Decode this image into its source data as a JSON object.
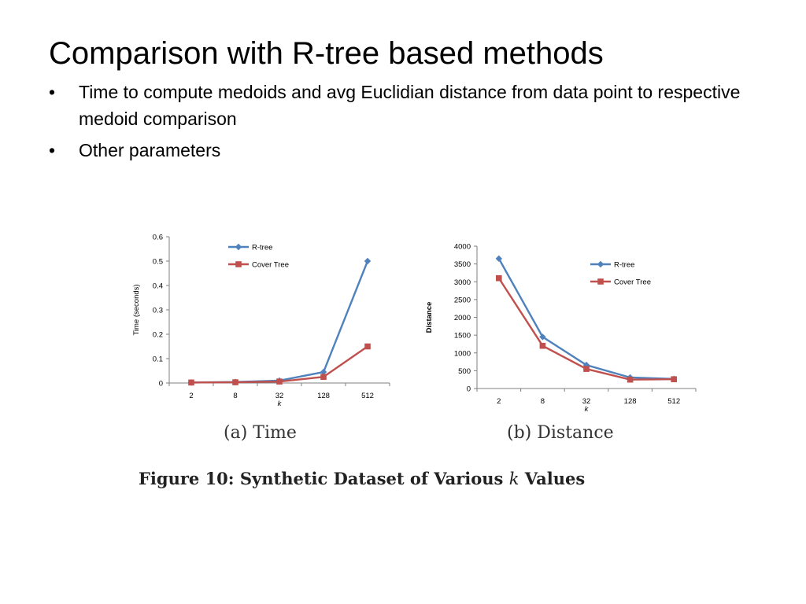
{
  "slide": {
    "title": "Comparison with R-tree based methods",
    "bullets": [
      "Time to compute medoids and avg Euclidian distance from data point to respective medoid comparison",
      "Other parameters"
    ],
    "bullet_glyph": "•"
  },
  "figure": {
    "caption_prefix": "Figure 10:  Synthetic Dataset of Various",
    "caption_var": "k",
    "caption_suffix": "Values"
  },
  "colors": {
    "rtree": "#4f81bd",
    "cover": "#c0504d",
    "axis": "#7f7f7f"
  },
  "chart_data": [
    {
      "type": "line",
      "subcaption": "(a)  Time",
      "categories": [
        "2",
        "8",
        "32",
        "128",
        "512"
      ],
      "xlabel": "k",
      "ylabel": "Time (seconds)",
      "ylim": [
        0,
        0.6
      ],
      "yticks": [
        "0",
        "0.1",
        "0.2",
        "0.3",
        "0.4",
        "0.5",
        "0.6"
      ],
      "legend_position": "top-center",
      "series": [
        {
          "name": "R-tree",
          "values": [
            0.002,
            0.004,
            0.01,
            0.045,
            0.5
          ]
        },
        {
          "name": "Cover Tree",
          "values": [
            0.002,
            0.003,
            0.006,
            0.025,
            0.15
          ]
        }
      ]
    },
    {
      "type": "line",
      "subcaption": "(b)  Distance",
      "categories": [
        "2",
        "8",
        "32",
        "128",
        "512"
      ],
      "xlabel": "k",
      "ylabel": "Distance",
      "ylim": [
        0,
        4000
      ],
      "yticks": [
        "0",
        "500",
        "1000",
        "1500",
        "2000",
        "2500",
        "3000",
        "3500",
        "4000"
      ],
      "legend_position": "top-right",
      "series": [
        {
          "name": "R-tree",
          "values": [
            3650,
            1450,
            660,
            310,
            270
          ]
        },
        {
          "name": "Cover Tree",
          "values": [
            3100,
            1200,
            550,
            250,
            260
          ]
        }
      ]
    }
  ]
}
